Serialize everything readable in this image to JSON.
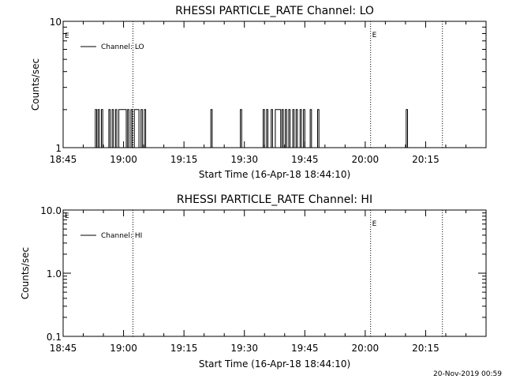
{
  "chart_data": [
    {
      "type": "line",
      "title": "RHESSI PARTICLE_RATE Channel: LO",
      "xlabel": "Start Time (16-Apr-18 18:44:10)",
      "ylabel": "Counts/sec",
      "y_scale": "log",
      "ylim": [
        1,
        10
      ],
      "yticks": [
        "1",
        "10"
      ],
      "xticks": [
        "18:45",
        "19:00",
        "19:15",
        "19:30",
        "19:45",
        "20:00",
        "20:15"
      ],
      "legend": "top-left",
      "series": [
        {
          "name": "Channel: LO",
          "color": "#000000",
          "style": "step",
          "points": [
            [
              "18:53:00",
              1
            ],
            [
              "18:53:00",
              2
            ],
            [
              "18:53:20",
              2
            ],
            [
              "18:53:20",
              1
            ],
            [
              "18:53:40",
              1
            ],
            [
              "18:53:40",
              2
            ],
            [
              "18:54:00",
              2
            ],
            [
              "18:54:00",
              1
            ],
            [
              "18:54:30",
              1
            ],
            [
              "18:54:30",
              2
            ],
            [
              "18:54:50",
              2
            ],
            [
              "18:54:50",
              1
            ],
            [
              "18:56:20",
              1
            ],
            [
              "18:56:20",
              2
            ],
            [
              "18:56:40",
              2
            ],
            [
              "18:56:40",
              1
            ],
            [
              "18:57:10",
              1
            ],
            [
              "18:57:10",
              2
            ],
            [
              "18:57:30",
              2
            ],
            [
              "18:57:30",
              1
            ],
            [
              "18:58:00",
              1
            ],
            [
              "18:58:00",
              2
            ],
            [
              "18:58:20",
              2
            ],
            [
              "18:58:20",
              1
            ],
            [
              "18:58:50",
              1
            ],
            [
              "18:58:50",
              2
            ],
            [
              "19:00:40",
              2
            ],
            [
              "19:00:40",
              1
            ],
            [
              "19:01:00",
              1
            ],
            [
              "19:01:00",
              2
            ],
            [
              "19:01:20",
              2
            ],
            [
              "19:01:20",
              1
            ],
            [
              "19:01:50",
              1
            ],
            [
              "19:01:50",
              2
            ],
            [
              "19:02:10",
              2
            ],
            [
              "19:02:10",
              1
            ],
            [
              "19:02:40",
              1
            ],
            [
              "19:02:40",
              2
            ],
            [
              "19:03:50",
              2
            ],
            [
              "19:03:50",
              1
            ],
            [
              "19:04:20",
              1
            ],
            [
              "19:04:20",
              2
            ],
            [
              "19:04:40",
              2
            ],
            [
              "19:04:40",
              1
            ],
            [
              "19:05:10",
              1
            ],
            [
              "19:05:10",
              2
            ],
            [
              "19:05:30",
              2
            ],
            [
              "19:05:30",
              1
            ],
            [
              "19:21:40",
              1
            ],
            [
              "19:21:40",
              2
            ],
            [
              "19:22:00",
              2
            ],
            [
              "19:22:00",
              1
            ],
            [
              "19:29:00",
              1
            ],
            [
              "19:29:00",
              2
            ],
            [
              "19:29:20",
              2
            ],
            [
              "19:29:20",
              1
            ],
            [
              "19:34:40",
              1
            ],
            [
              "19:34:40",
              2
            ],
            [
              "19:35:00",
              2
            ],
            [
              "19:35:00",
              1
            ],
            [
              "19:35:30",
              1
            ],
            [
              "19:35:30",
              2
            ],
            [
              "19:35:50",
              2
            ],
            [
              "19:35:50",
              1
            ],
            [
              "19:36:40",
              1
            ],
            [
              "19:36:40",
              2
            ],
            [
              "19:37:00",
              2
            ],
            [
              "19:37:00",
              1
            ],
            [
              "19:37:40",
              1
            ],
            [
              "19:37:40",
              2
            ],
            [
              "19:39:00",
              2
            ],
            [
              "19:39:00",
              1
            ],
            [
              "19:39:20",
              1
            ],
            [
              "19:39:20",
              2
            ],
            [
              "19:39:40",
              2
            ],
            [
              "19:39:40",
              1
            ],
            [
              "19:40:10",
              1
            ],
            [
              "19:40:10",
              2
            ],
            [
              "19:40:30",
              2
            ],
            [
              "19:40:30",
              1
            ],
            [
              "19:41:00",
              1
            ],
            [
              "19:41:00",
              2
            ],
            [
              "19:41:20",
              2
            ],
            [
              "19:41:20",
              1
            ],
            [
              "19:42:00",
              1
            ],
            [
              "19:42:00",
              2
            ],
            [
              "19:42:20",
              2
            ],
            [
              "19:42:20",
              1
            ],
            [
              "19:42:50",
              1
            ],
            [
              "19:42:50",
              2
            ],
            [
              "19:43:10",
              2
            ],
            [
              "19:43:10",
              1
            ],
            [
              "19:43:50",
              1
            ],
            [
              "19:43:50",
              2
            ],
            [
              "19:44:10",
              2
            ],
            [
              "19:44:10",
              1
            ],
            [
              "19:44:40",
              1
            ],
            [
              "19:44:40",
              2
            ],
            [
              "19:45:00",
              2
            ],
            [
              "19:45:00",
              1
            ],
            [
              "19:46:20",
              1
            ],
            [
              "19:46:20",
              2
            ],
            [
              "19:46:40",
              2
            ],
            [
              "19:46:40",
              1
            ],
            [
              "19:48:10",
              1
            ],
            [
              "19:48:10",
              2
            ],
            [
              "19:48:30",
              2
            ],
            [
              "19:48:30",
              1
            ],
            [
              "20:10:10",
              1
            ],
            [
              "20:10:10",
              2
            ],
            [
              "20:10:30",
              2
            ],
            [
              "20:10:30",
              1
            ]
          ]
        }
      ],
      "markers": [
        {
          "time": "19:02:20",
          "label": ""
        },
        {
          "time": "20:01:20",
          "label": "E"
        },
        {
          "time": "20:19:10",
          "label": ""
        }
      ],
      "corner_label": "E"
    },
    {
      "type": "line",
      "title": "RHESSI PARTICLE_RATE Channel: HI",
      "xlabel": "Start Time (16-Apr-18 18:44:10)",
      "ylabel": "Counts/sec",
      "y_scale": "log",
      "ylim": [
        0.1,
        10
      ],
      "yticks": [
        "0.1",
        "1.0",
        "10.0"
      ],
      "xticks": [
        "18:45",
        "19:00",
        "19:15",
        "19:30",
        "19:45",
        "20:00",
        "20:15"
      ],
      "legend": "top-left",
      "series": [
        {
          "name": "Channel: HI",
          "color": "#000000",
          "style": "step",
          "points": []
        }
      ],
      "markers": [
        {
          "time": "19:02:20",
          "label": ""
        },
        {
          "time": "20:01:20",
          "label": "E"
        },
        {
          "time": "20:19:10",
          "label": ""
        }
      ],
      "corner_label": "E"
    }
  ],
  "footer": {
    "timestamp": "20-Nov-2019 00:59"
  }
}
